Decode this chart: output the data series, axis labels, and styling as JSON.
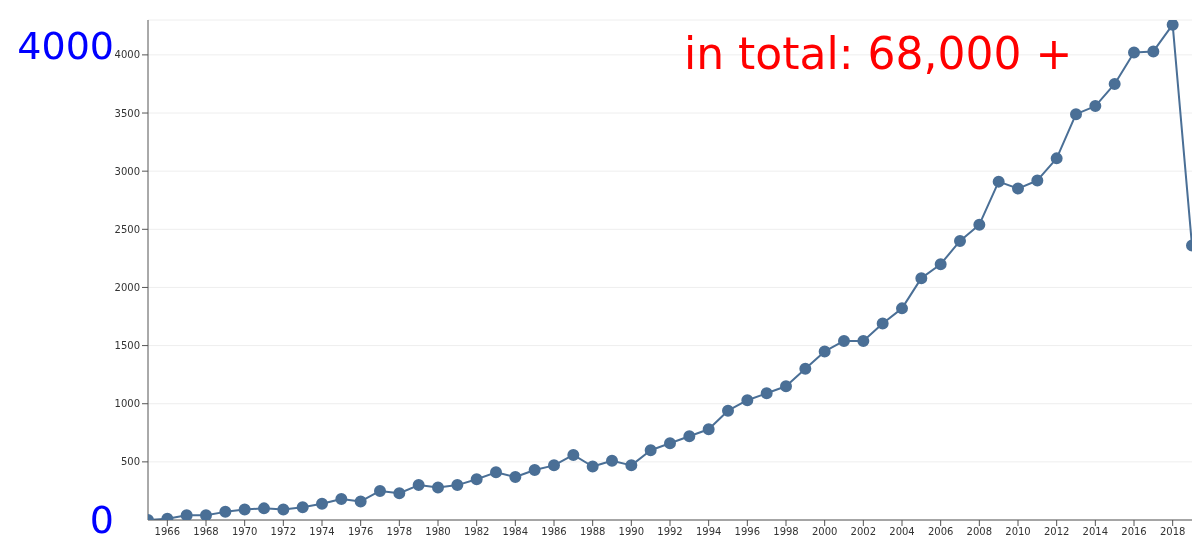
{
  "chart_data": {
    "type": "line",
    "x": [
      1965,
      1966,
      1967,
      1968,
      1969,
      1970,
      1971,
      1972,
      1973,
      1974,
      1975,
      1976,
      1977,
      1978,
      1979,
      1980,
      1981,
      1982,
      1983,
      1984,
      1985,
      1986,
      1987,
      1988,
      1989,
      1990,
      1991,
      1992,
      1993,
      1994,
      1995,
      1996,
      1997,
      1998,
      1999,
      2000,
      2001,
      2002,
      2003,
      2004,
      2005,
      2006,
      2007,
      2008,
      2009,
      2010,
      2011,
      2012,
      2013,
      2014,
      2015,
      2016,
      2017,
      2018,
      2019
    ],
    "series": [
      {
        "color": "#4a6f96",
        "values": [
          0,
          10,
          40,
          40,
          70,
          90,
          100,
          90,
          110,
          140,
          180,
          160,
          250,
          230,
          300,
          280,
          300,
          350,
          410,
          370,
          430,
          470,
          560,
          460,
          510,
          470,
          600,
          660,
          720,
          780,
          940,
          1030,
          1090,
          1150,
          1300,
          1450,
          1540,
          1540,
          1690,
          1820,
          2080,
          2200,
          2400,
          2540,
          2910,
          2850,
          2920,
          3110,
          3490,
          3560,
          3750,
          4020,
          4030,
          4260,
          2360
        ]
      }
    ],
    "xlim": [
      1965,
      2019
    ],
    "xticks": [
      1966,
      1968,
      1970,
      1972,
      1974,
      1976,
      1978,
      1980,
      1982,
      1984,
      1986,
      1988,
      1990,
      1992,
      1994,
      1996,
      1998,
      2000,
      2002,
      2004,
      2006,
      2008,
      2010,
      2012,
      2014,
      2016,
      2018
    ],
    "ylim": [
      0,
      4300
    ],
    "yticks": [
      500,
      1000,
      1500,
      2000,
      2500,
      3000,
      3500,
      4000
    ],
    "grid": "y",
    "marker": "circle",
    "line_style": "solid",
    "annotations": [
      "4000",
      "0",
      "in total: 68,000 +"
    ]
  }
}
